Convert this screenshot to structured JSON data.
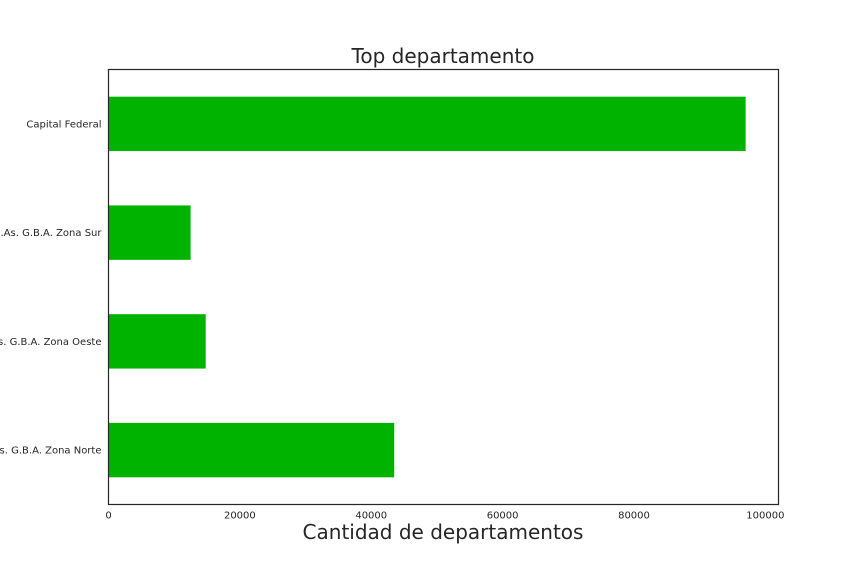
{
  "chart_data": {
    "type": "bar",
    "orientation": "horizontal",
    "title": "Top departamento",
    "xlabel": "Cantidad de departamentos",
    "ylabel": "",
    "categories": [
      "Capital Federal",
      "Bs.As. G.B.A. Zona Sur",
      "Bs.As. G.B.A. Zona Oeste",
      "Bs.As. G.B.A. Zona Norte"
    ],
    "values": [
      97000,
      12500,
      14800,
      43500
    ],
    "xlim": [
      0,
      102000
    ],
    "xticks": [
      0,
      20000,
      40000,
      60000,
      80000,
      100000
    ],
    "xtick_labels": [
      "0",
      "20000",
      "40000",
      "60000",
      "80000",
      "100000"
    ],
    "bar_color": "#00b300",
    "grid": false,
    "legend": "none"
  }
}
